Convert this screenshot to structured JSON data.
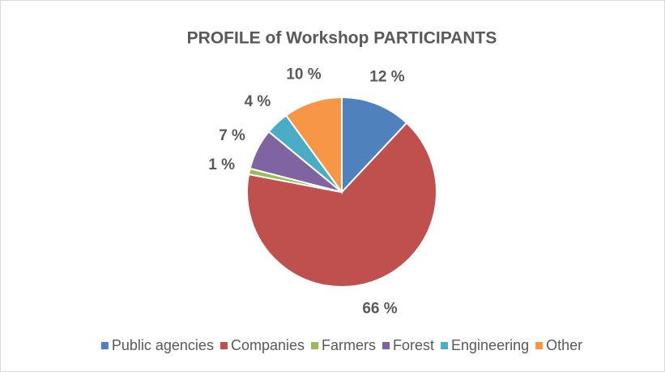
{
  "chart_data": {
    "type": "pie",
    "title": "PROFILE of Workshop PARTICIPANTS",
    "categories": [
      "Public agencies",
      "Companies",
      "Farmers",
      "Forest",
      "Engineering",
      "Other"
    ],
    "values": [
      12,
      66,
      1,
      7,
      4,
      10
    ],
    "value_labels": [
      "12 %",
      "66 %",
      "1 %",
      "7 %",
      "4 %",
      "10 %"
    ],
    "colors": [
      "#4f81bd",
      "#c0504d",
      "#9bbb59",
      "#8064a2",
      "#4bacc6",
      "#f79646"
    ],
    "legend": "bottom"
  }
}
